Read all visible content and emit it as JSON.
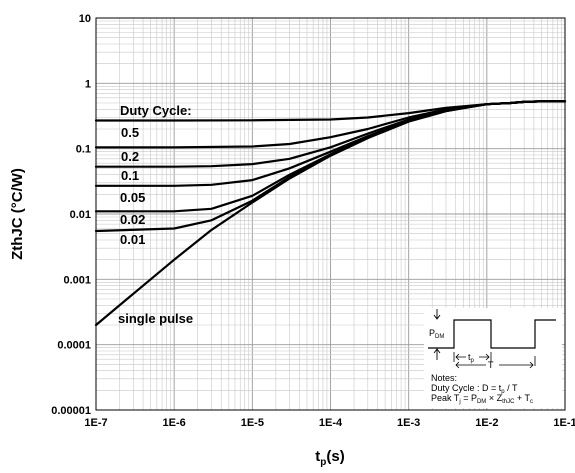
{
  "chart_data": {
    "type": "line",
    "xscale": "log",
    "yscale": "log",
    "xlim": [
      1e-07,
      0.1
    ],
    "ylim": [
      1e-05,
      10
    ],
    "grid": true,
    "x_ticks": [
      "1E-7",
      "1E-6",
      "1E-5",
      "1E-4",
      "1E-3",
      "1E-2",
      "1E-1"
    ],
    "y_ticks": [
      "0.00001",
      "0.0001",
      "0.001",
      "0.01",
      "0.1",
      "1",
      "10"
    ],
    "xlabel": {
      "main": "t",
      "sub": "p",
      "tail": "(s)"
    },
    "ylabel": "ZthJC (°C/W)",
    "legend_title": "Duty Cycle:",
    "series": [
      {
        "name": "0.5",
        "x": [
          1e-07,
          1e-06,
          1e-05,
          0.0001,
          0.0003,
          0.001,
          0.003,
          0.01,
          0.02,
          0.03,
          0.05,
          0.1
        ],
        "y": [
          0.27,
          0.27,
          0.272,
          0.28,
          0.3,
          0.35,
          0.42,
          0.48,
          0.5,
          0.52,
          0.53,
          0.53
        ]
      },
      {
        "name": "0.2",
        "x": [
          1e-07,
          1e-06,
          1e-05,
          3e-05,
          0.0001,
          0.0003,
          0.001,
          0.003,
          0.01,
          0.02,
          0.03,
          0.05,
          0.1
        ],
        "y": [
          0.105,
          0.105,
          0.108,
          0.118,
          0.15,
          0.2,
          0.3,
          0.4,
          0.48,
          0.5,
          0.52,
          0.53,
          0.53
        ]
      },
      {
        "name": "0.1",
        "x": [
          1e-07,
          1e-06,
          3e-06,
          1e-05,
          3e-05,
          0.0001,
          0.0003,
          0.001,
          0.003,
          0.01,
          0.02,
          0.03,
          0.05,
          0.1
        ],
        "y": [
          0.053,
          0.053,
          0.054,
          0.058,
          0.07,
          0.105,
          0.17,
          0.28,
          0.39,
          0.48,
          0.5,
          0.52,
          0.53,
          0.53
        ]
      },
      {
        "name": "0.05",
        "x": [
          1e-07,
          1e-06,
          3e-06,
          1e-05,
          3e-05,
          0.0001,
          0.0003,
          0.001,
          0.003,
          0.01,
          0.02,
          0.03,
          0.05,
          0.1
        ],
        "y": [
          0.027,
          0.027,
          0.028,
          0.033,
          0.05,
          0.09,
          0.155,
          0.27,
          0.385,
          0.48,
          0.5,
          0.52,
          0.53,
          0.53
        ]
      },
      {
        "name": "0.02",
        "x": [
          1e-07,
          1e-06,
          3e-06,
          1e-05,
          3e-05,
          0.0001,
          0.0003,
          0.001,
          0.003,
          0.01,
          0.02,
          0.03,
          0.05,
          0.1
        ],
        "y": [
          0.011,
          0.011,
          0.012,
          0.019,
          0.04,
          0.082,
          0.15,
          0.265,
          0.38,
          0.48,
          0.5,
          0.52,
          0.53,
          0.53
        ]
      },
      {
        "name": "0.01",
        "x": [
          1e-07,
          1e-06,
          3e-06,
          1e-05,
          3e-05,
          0.0001,
          0.0003,
          0.001,
          0.003,
          0.01,
          0.02,
          0.03,
          0.05,
          0.1
        ],
        "y": [
          0.0055,
          0.006,
          0.008,
          0.016,
          0.037,
          0.08,
          0.148,
          0.262,
          0.378,
          0.48,
          0.5,
          0.52,
          0.53,
          0.53
        ]
      },
      {
        "name": "single pulse",
        "x": [
          1e-07,
          3e-07,
          1e-06,
          3e-06,
          1e-05,
          3e-05,
          0.0001,
          0.0003,
          0.001,
          0.003,
          0.01,
          0.02,
          0.03,
          0.05,
          0.1
        ],
        "y": [
          0.0002,
          0.0006,
          0.002,
          0.0057,
          0.015,
          0.035,
          0.078,
          0.145,
          0.26,
          0.375,
          0.48,
          0.5,
          0.52,
          0.53,
          0.53
        ]
      }
    ],
    "inset": {
      "pdm_label": {
        "main": "P",
        "sub": "DM"
      },
      "tp_label": {
        "main": "t",
        "sub": "p"
      },
      "period_label": "T",
      "notes_title": "Notes:",
      "duty_note": {
        "a": "Duty Cycle : D = t",
        "sub": "p",
        "b": " / T"
      },
      "peak_note": {
        "a": "Peak T",
        "s1": "j",
        "b": " = P",
        "s2": "DM",
        "c": " × Z",
        "s3": "thJC",
        "d": " + T",
        "s4": "c"
      }
    }
  }
}
